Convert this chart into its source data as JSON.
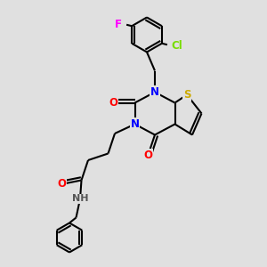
{
  "background_color": "#e0e0e0",
  "atom_colors": {
    "C": "#000000",
    "N": "#0000ff",
    "O": "#ff0000",
    "S": "#ccaa00",
    "F": "#ff00ff",
    "Cl": "#77dd00",
    "H": "#555555"
  },
  "bond_color": "#000000",
  "bond_width": 1.5,
  "font_size_atom": 8.5
}
